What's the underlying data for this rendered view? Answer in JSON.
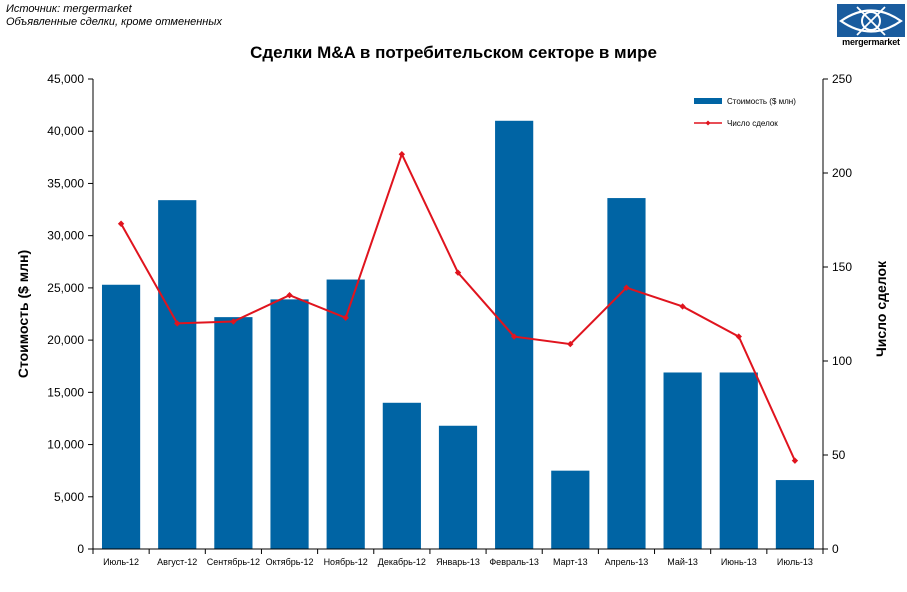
{
  "header": {
    "source_line1": "Источник: mergermarket",
    "source_line2": "Объявленные сделки, кроме отмененных",
    "logo_text": "mergermarket"
  },
  "colors": {
    "bar": "#0064A4",
    "line": "#E0141E",
    "logo": "#1A5C9E"
  },
  "chart_data": {
    "type": "bar",
    "title": "Сделки M&A в потребительском секторе в мире",
    "categories": [
      "Июль-12",
      "Август-12",
      "Сентябрь-12",
      "Октябрь-12",
      "Ноябрь-12",
      "Декабрь-12",
      "Январь-13",
      "Февраль-13",
      "Март-13",
      "Апрель-13",
      "Май-13",
      "Июнь-13",
      "Июль-13"
    ],
    "series": [
      {
        "name": "Стоимость ($ млн)",
        "type": "bar",
        "axis": "left",
        "values": [
          25300,
          33400,
          22200,
          23900,
          25800,
          14000,
          11800,
          41000,
          7500,
          33600,
          16900,
          16900,
          6600
        ]
      },
      {
        "name": "Число сделок",
        "type": "line",
        "axis": "right",
        "values": [
          173,
          120,
          121,
          135,
          123,
          210,
          147,
          113,
          109,
          139,
          129,
          113,
          47
        ]
      }
    ],
    "ylabel": "Стоимость ($ млн)",
    "ylabel_right": "Число сделок",
    "ylim": [
      0,
      45000
    ],
    "ylim_right": [
      0,
      250
    ],
    "yticks": [
      "0",
      "5,000",
      "10,000",
      "15,000",
      "20,000",
      "25,000",
      "30,000",
      "35,000",
      "40,000",
      "45,000"
    ],
    "yticks_right": [
      "0",
      "50",
      "100",
      "150",
      "200",
      "250"
    ],
    "legend_position": "top-right",
    "grid": false
  }
}
